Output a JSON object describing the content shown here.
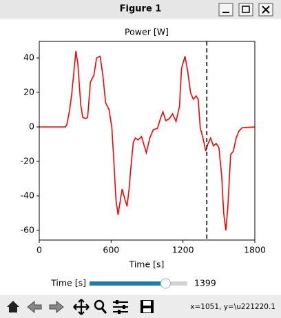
{
  "window": {
    "title": "Figure 1"
  },
  "chart_data": {
    "type": "line",
    "title": "Power [W]",
    "x_label": "Time [s]",
    "x": [
      0,
      219,
      231,
      254,
      271,
      306,
      323,
      346,
      363,
      387,
      404,
      427,
      456,
      479,
      508,
      531,
      554,
      583,
      606,
      623,
      640,
      658,
      669,
      692,
      715,
      733,
      750,
      767,
      785,
      802,
      825,
      854,
      871,
      894,
      923,
      952,
      987,
      1015,
      1033,
      1056,
      1085,
      1113,
      1142,
      1171,
      1188,
      1217,
      1240,
      1263,
      1286,
      1310,
      1327,
      1344,
      1367,
      1390,
      1407,
      1431,
      1454,
      1477,
      1500,
      1523,
      1540,
      1558,
      1575,
      1598,
      1621,
      1644,
      1667,
      1696,
      1800
    ],
    "series": [
      {
        "color": "#ff0000",
        "values": [
          0,
          0,
          1.6,
          10,
          19,
          44,
          36,
          13,
          5.6,
          4.8,
          5.6,
          26,
          30,
          40,
          41,
          30,
          14,
          10,
          -0.4,
          -20,
          -42,
          -51,
          -46,
          -36,
          -42,
          -46,
          -36,
          -22,
          -9,
          -6.4,
          -7.6,
          -5.6,
          -9.6,
          -15,
          -6.4,
          -1.6,
          -0.8,
          5.6,
          8.8,
          3.6,
          4.8,
          7.6,
          3.2,
          12,
          34,
          41,
          32,
          20,
          16,
          18,
          16,
          -0.4,
          -6.4,
          -14,
          -10,
          -6.4,
          -11,
          -9.6,
          -12,
          -28,
          -50,
          -60,
          -46,
          -16,
          -14,
          -6.4,
          -2.4,
          -0.4,
          0
        ]
      }
    ],
    "xlim": [
      0,
      1800
    ],
    "xticks": [
      0,
      600,
      1200,
      1800
    ],
    "ylim": [
      -65.6,
      49.6
    ],
    "yticks": [
      -60,
      -40,
      -20,
      0,
      20,
      40
    ],
    "grid": false,
    "marker_color": "#000000"
  },
  "slider": {
    "label": "Time [s]",
    "value": 1399,
    "color": "#1f77b4"
  },
  "status": "x=1051, y=\\u221220.1"
}
